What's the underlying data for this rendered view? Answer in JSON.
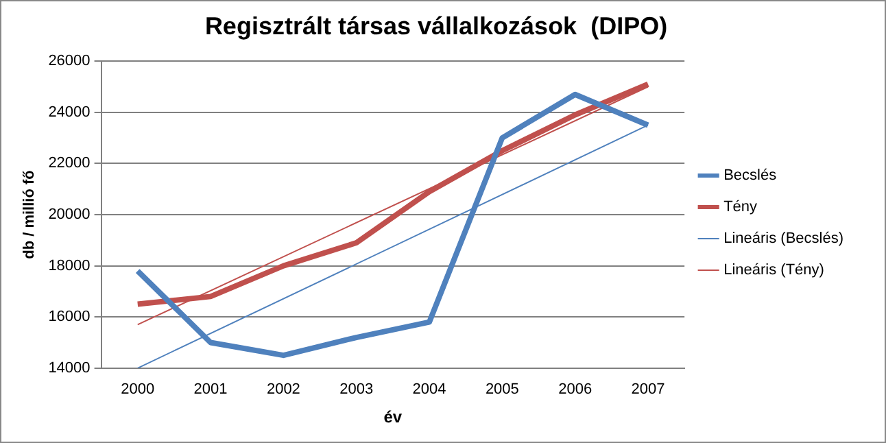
{
  "chart_data": {
    "type": "line",
    "title": "Regisztrált társas vállalkozások  (DIPO)",
    "xlabel": "év",
    "ylabel": "db / millió fő",
    "categories": [
      "2000",
      "2001",
      "2002",
      "2003",
      "2004",
      "2005",
      "2006",
      "2007"
    ],
    "series": [
      {
        "name": "Becslés",
        "color": "#4f81bd",
        "values": [
          17800,
          15000,
          14500,
          15200,
          15800,
          23000,
          24700,
          23500
        ]
      },
      {
        "name": "Tény",
        "color": "#c0504d",
        "values": [
          16500,
          16800,
          18000,
          18900,
          20900,
          22500,
          23900,
          25100
        ]
      },
      {
        "name": "Lineáris (Becslés)",
        "color": "#4f81bd",
        "type": "line",
        "values": [
          14000,
          null,
          null,
          null,
          null,
          null,
          null,
          23500
        ]
      },
      {
        "name": "Lineáris (Tény)",
        "color": "#c0504d",
        "type": "line",
        "values": [
          15700,
          null,
          null,
          null,
          null,
          null,
          null,
          25000
        ]
      }
    ],
    "ylim": [
      14000,
      26000
    ],
    "yticks": [
      14000,
      16000,
      18000,
      20000,
      22000,
      24000,
      26000
    ],
    "grid": "y",
    "legend": "right",
    "marker": "none",
    "line_style": "solid"
  }
}
